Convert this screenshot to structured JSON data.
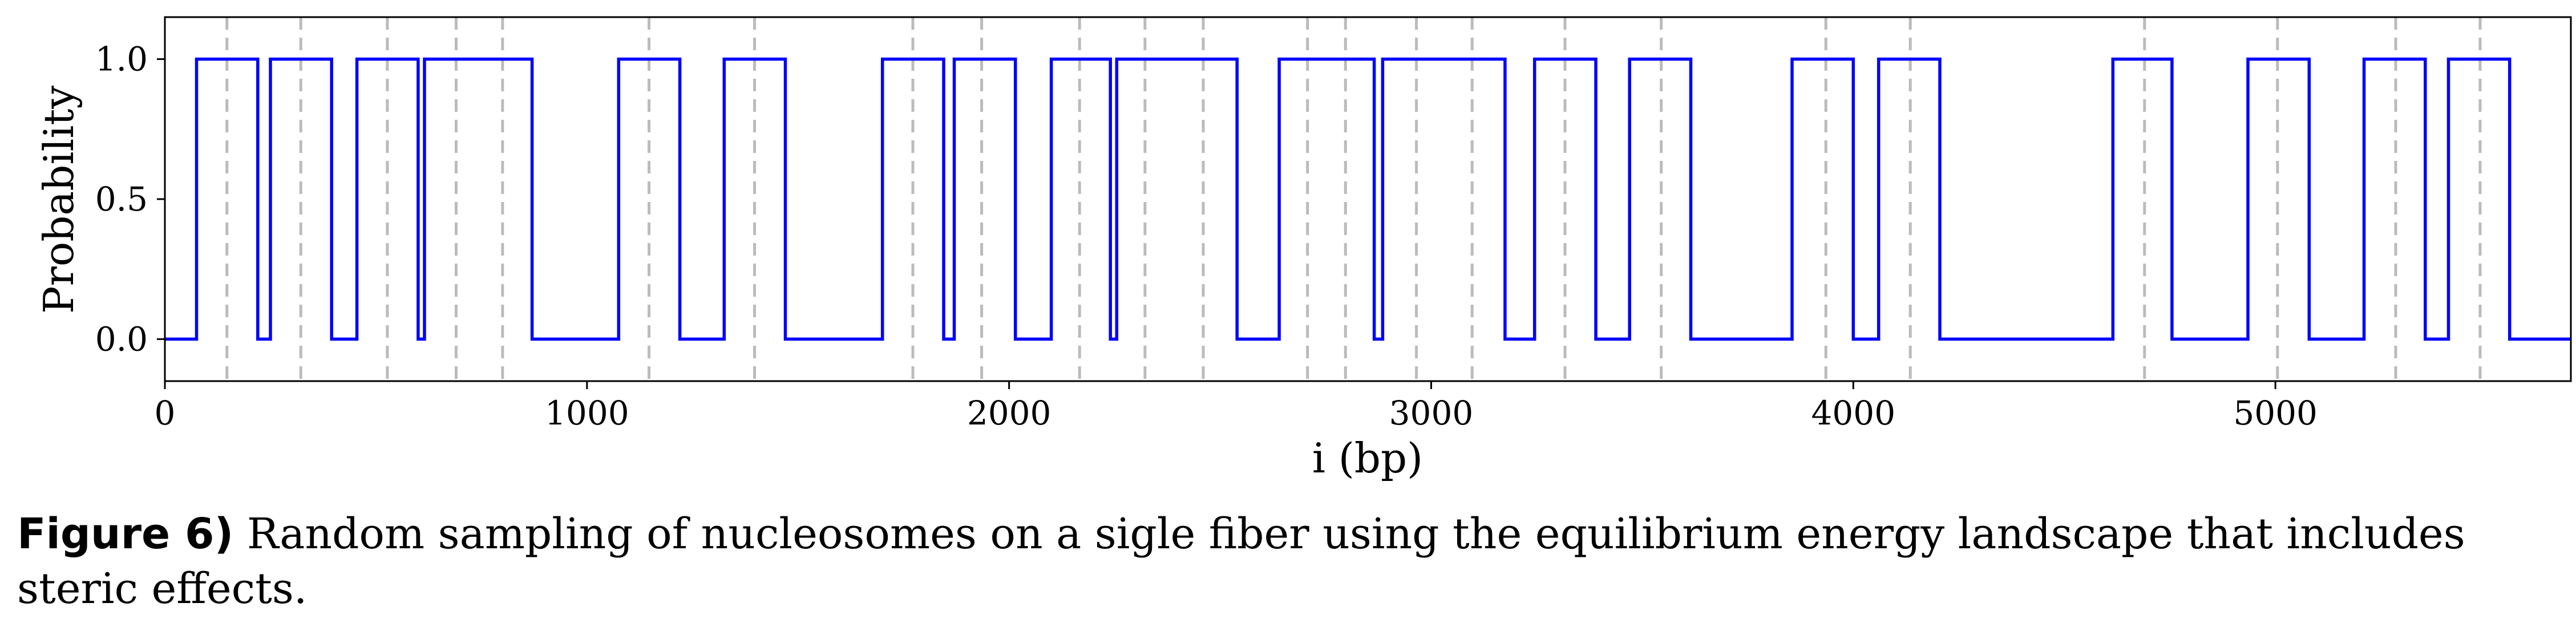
{
  "chart_data": {
    "type": "line",
    "xlabel": "i (bp)",
    "ylabel": "Probability",
    "xlim": [
      0,
      5700
    ],
    "ylim": [
      -0.15,
      1.15
    ],
    "xticks": [
      0,
      1000,
      2000,
      3000,
      4000,
      5000
    ],
    "yticks": [
      0.0,
      0.5,
      1.0
    ],
    "ytick_labels": [
      "0.0",
      "0.5",
      "1.0"
    ],
    "grid": false,
    "series": [
      {
        "color": "#0000ff",
        "step_x": [
          0,
          75,
          75,
          220,
          220,
          250,
          250,
          395,
          395,
          455,
          455,
          600,
          600,
          615,
          615,
          870,
          870,
          1075,
          1075,
          1220,
          1220,
          1325,
          1325,
          1470,
          1470,
          1700,
          1700,
          1845,
          1845,
          1870,
          1870,
          2015,
          2015,
          2100,
          2100,
          2240,
          2240,
          2255,
          2255,
          2540,
          2540,
          2640,
          2640,
          2865,
          2865,
          2885,
          2885,
          3175,
          3175,
          3245,
          3245,
          3390,
          3390,
          3470,
          3470,
          3615,
          3615,
          3855,
          3855,
          4000,
          4000,
          4060,
          4060,
          4205,
          4205,
          4615,
          4615,
          4755,
          4755,
          4935,
          4935,
          5080,
          5080,
          5210,
          5210,
          5355,
          5355,
          5410,
          5410,
          5555,
          5555,
          5700
        ],
        "step_y": [
          0,
          0,
          1,
          1,
          0,
          0,
          1,
          1,
          0,
          0,
          1,
          1,
          0,
          0,
          1,
          1,
          0,
          0,
          1,
          1,
          0,
          0,
          1,
          1,
          0,
          0,
          1,
          1,
          0,
          0,
          1,
          1,
          0,
          0,
          1,
          1,
          0,
          0,
          1,
          1,
          0,
          0,
          1,
          1,
          0,
          0,
          1,
          1,
          0,
          0,
          1,
          1,
          0,
          0,
          1,
          1,
          0,
          0,
          1,
          1,
          0,
          0,
          1,
          1,
          0,
          0,
          1,
          1,
          0,
          0,
          1,
          1,
          0,
          0,
          1,
          1,
          0,
          0,
          1,
          1,
          0,
          0
        ]
      }
    ],
    "reference_lines": {
      "color": "#bbbbbb",
      "style": "dashed",
      "x": [
        147,
        322,
        527,
        690,
        800,
        1147,
        1397,
        1772,
        1935,
        2167,
        2322,
        2460,
        2707,
        2797,
        2965,
        3097,
        3317,
        3545,
        3935,
        4135,
        4690,
        5005,
        5285,
        5485
      ]
    }
  },
  "caption": {
    "label": "Figure 6)",
    "text": " Random sampling of nucleosomes on a sigle fiber using the equilibrium energy landscape that includes steric effects."
  }
}
